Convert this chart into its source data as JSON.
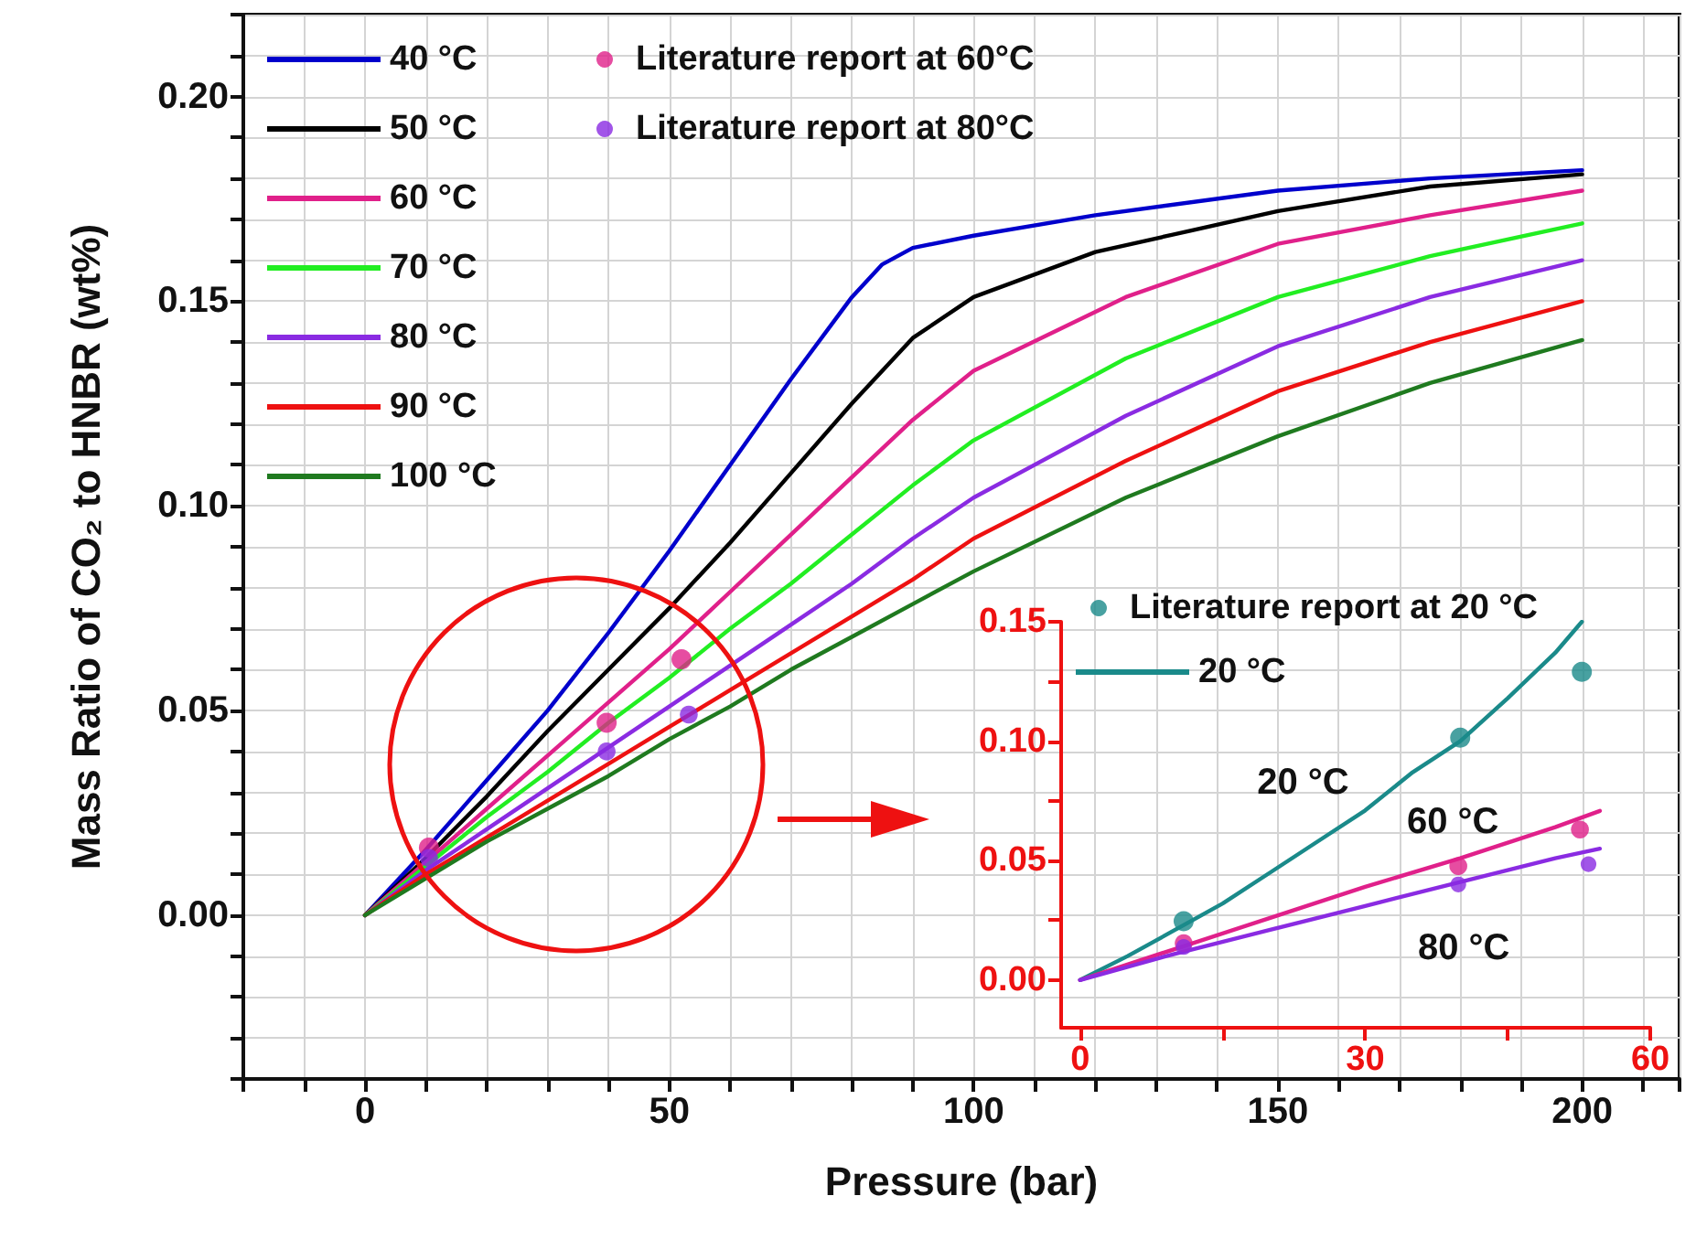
{
  "chart_data": [
    {
      "type": "line",
      "xlabel": "Pressure (bar)",
      "ylabel": "Mass Ratio of CO₂ to HNBR (wt%)",
      "x": [
        0,
        10,
        20,
        30,
        40,
        50,
        60,
        70,
        80,
        90,
        100,
        125,
        150,
        175,
        200
      ],
      "series": [
        {
          "name": "40 °C",
          "color": "#0000cc",
          "x": [
            0,
            10,
            20,
            30,
            40,
            50,
            60,
            70,
            80,
            85,
            90,
            100,
            120,
            150,
            175,
            200
          ],
          "values": [
            0,
            0.016,
            0.033,
            0.05,
            0.069,
            0.089,
            0.11,
            0.131,
            0.151,
            0.159,
            0.163,
            0.166,
            0.171,
            0.177,
            0.18,
            0.182
          ]
        },
        {
          "name": "50 °C",
          "color": "#000000",
          "x": [
            0,
            10,
            20,
            30,
            40,
            50,
            60,
            70,
            80,
            90,
            100,
            120,
            150,
            175,
            200
          ],
          "values": [
            0,
            0.014,
            0.029,
            0.045,
            0.06,
            0.075,
            0.091,
            0.108,
            0.125,
            0.141,
            0.151,
            0.162,
            0.172,
            0.178,
            0.181
          ]
        },
        {
          "name": "60 °C",
          "color": "#e0208a",
          "values": [
            0,
            0.013,
            0.026,
            0.039,
            0.052,
            0.065,
            0.079,
            0.093,
            0.107,
            0.121,
            0.133,
            0.151,
            0.164,
            0.171,
            0.177
          ]
        },
        {
          "name": "70 °C",
          "color": "#22ee22",
          "values": [
            0,
            0.012,
            0.024,
            0.035,
            0.047,
            0.058,
            0.07,
            0.081,
            0.093,
            0.105,
            0.116,
            0.136,
            0.151,
            0.161,
            0.169
          ]
        },
        {
          "name": "80 °C",
          "color": "#8a2be2",
          "values": [
            0,
            0.011,
            0.021,
            0.031,
            0.041,
            0.051,
            0.061,
            0.071,
            0.081,
            0.092,
            0.102,
            0.122,
            0.139,
            0.151,
            0.16
          ]
        },
        {
          "name": "90 °C",
          "color": "#ee1111",
          "values": [
            0,
            0.01,
            0.019,
            0.028,
            0.037,
            0.046,
            0.055,
            0.064,
            0.073,
            0.082,
            0.092,
            0.111,
            0.128,
            0.14,
            0.15
          ]
        },
        {
          "name": "100 °C",
          "color": "#1f7a1f",
          "values": [
            0,
            0.009,
            0.018,
            0.026,
            0.034,
            0.043,
            0.051,
            0.06,
            0.068,
            0.076,
            0.084,
            0.102,
            0.117,
            0.13,
            0.1405
          ]
        },
        {
          "name": "Literature report at 60°C",
          "type": "scatter",
          "marker": "circle",
          "color": "#e0208a",
          "x": [
            10.5,
            39.7,
            52
          ],
          "values": [
            0.0165,
            0.047,
            0.0625
          ]
        },
        {
          "name": "Literature report at 80°C",
          "type": "scatter",
          "marker": "circle",
          "color": "#8a2be2",
          "x": [
            10.5,
            39.7,
            53.2
          ],
          "values": [
            0.014,
            0.04,
            0.049
          ]
        }
      ],
      "xlim": [
        -20,
        216
      ],
      "xticks": [
        {
          "value": -20,
          "label": null
        },
        {
          "value": -10,
          "label": null
        },
        0,
        {
          "value": 10,
          "label": null
        },
        {
          "value": 20,
          "label": null
        },
        {
          "value": 30,
          "label": null
        },
        {
          "value": 40,
          "label": null
        },
        50,
        {
          "value": 60,
          "label": null
        },
        {
          "value": 70,
          "label": null
        },
        {
          "value": 80,
          "label": null
        },
        {
          "value": 90,
          "label": null
        },
        100,
        {
          "value": 110,
          "label": null
        },
        {
          "value": 120,
          "label": null
        },
        {
          "value": 130,
          "label": null
        },
        {
          "value": 140,
          "label": null
        },
        150,
        {
          "value": 160,
          "label": null
        },
        {
          "value": 170,
          "label": null
        },
        {
          "value": 180,
          "label": null
        },
        {
          "value": 190,
          "label": null
        },
        200,
        {
          "value": 210,
          "label": null
        }
      ],
      "ylim": [
        -0.04,
        0.22
      ],
      "yticks": [
        {
          "value": -0.04,
          "label": null
        },
        {
          "value": -0.03,
          "label": null
        },
        {
          "value": -0.02,
          "label": null
        },
        {
          "value": -0.01,
          "label": null
        },
        {
          "value": 0,
          "label": "0.00"
        },
        {
          "value": 0.01,
          "label": null
        },
        {
          "value": 0.02,
          "label": null
        },
        {
          "value": 0.03,
          "label": null
        },
        {
          "value": 0.04,
          "label": null
        },
        {
          "value": 0.05,
          "label": "0.05"
        },
        {
          "value": 0.06,
          "label": null
        },
        {
          "value": 0.07,
          "label": null
        },
        {
          "value": 0.08,
          "label": null
        },
        {
          "value": 0.09,
          "label": null
        },
        {
          "value": 0.1,
          "label": "0.10"
        },
        {
          "value": 0.11,
          "label": null
        },
        {
          "value": 0.12,
          "label": null
        },
        {
          "value": 0.13,
          "label": null
        },
        {
          "value": 0.14,
          "label": null
        },
        {
          "value": 0.15,
          "label": "0.15"
        },
        {
          "value": 0.16,
          "label": null
        },
        {
          "value": 0.17,
          "label": null
        },
        {
          "value": 0.18,
          "label": null
        },
        {
          "value": 0.19,
          "label": null
        },
        {
          "value": 0.2,
          "label": "0.20"
        },
        {
          "value": 0.21,
          "label": null
        },
        {
          "value": 0.22,
          "label": null
        }
      ],
      "grid": true,
      "legend": "top left",
      "marker": "none"
    },
    {
      "type": "line",
      "series": [
        {
          "name": "Literature report at 20 °C",
          "type": "scatter",
          "marker": "circle",
          "color": "#1a8a8a",
          "x": [
            10.9,
            40,
            52.8
          ],
          "values": [
            0.0246,
            0.1015,
            0.129
          ]
        },
        {
          "name": "20 °C",
          "color": "#1a8a8a",
          "x": [
            0,
            5,
            10,
            15,
            20,
            25,
            30,
            35,
            40,
            45,
            50,
            52.8
          ],
          "values": [
            0,
            0.01,
            0.021,
            0.032,
            0.045,
            0.058,
            0.071,
            0.087,
            0.1,
            0.118,
            0.137,
            0.15
          ]
        },
        {
          "name": "60 °C",
          "color": "#e0208a",
          "x": [
            0,
            10,
            20,
            30,
            40,
            50,
            54.7
          ],
          "values": [
            0,
            0.013,
            0.026,
            0.039,
            0.051,
            0.064,
            0.0708
          ]
        },
        {
          "name": "80 °C",
          "color": "#8a2be2",
          "x": [
            0,
            10,
            20,
            30,
            40,
            50,
            54.7
          ],
          "values": [
            0,
            0.011,
            0.021,
            0.031,
            0.041,
            0.051,
            0.055
          ]
        },
        {
          "type": "scatter",
          "marker": "circle",
          "color": "#e0208a",
          "x": [
            10.9,
            39.8,
            52.6
          ],
          "values": [
            0.0154,
            0.0477,
            0.063
          ]
        },
        {
          "type": "scatter",
          "marker": "circle",
          "color": "#8a2be2",
          "x": [
            10.9,
            39.8,
            53.5
          ],
          "values": [
            0.0138,
            0.04,
            0.0485
          ]
        }
      ],
      "xlim": [
        -2,
        60
      ],
      "xticks": [
        0,
        {
          "value": 15,
          "label": null
        },
        30,
        {
          "value": 45,
          "label": null
        },
        60
      ],
      "ylim": [
        -0.02,
        0.15
      ],
      "yticks": [
        {
          "value": 0,
          "label": "0.00"
        },
        {
          "value": 0.025,
          "label": null
        },
        {
          "value": 0.05,
          "label": "0.05"
        },
        {
          "value": 0.075,
          "label": null
        },
        {
          "value": 0.1,
          "label": "0.10"
        },
        {
          "value": 0.125,
          "label": null
        },
        {
          "value": 0.15,
          "label": "0.15"
        }
      ],
      "legend": "top left",
      "marker": "none"
    }
  ]
}
